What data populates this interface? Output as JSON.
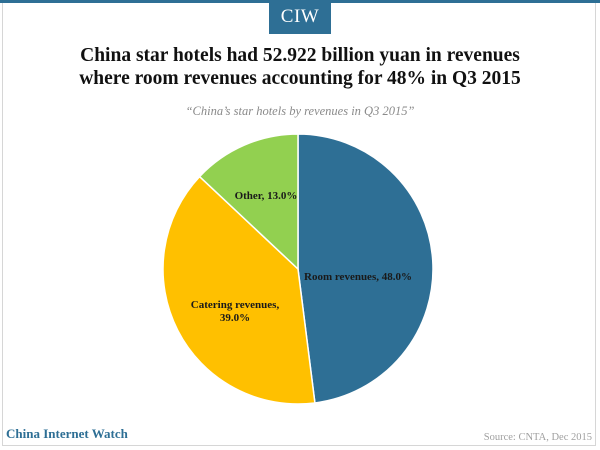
{
  "brand": {
    "logo_text": "CIW",
    "footer_text": "China Internet Watch",
    "color": "#2e6f95"
  },
  "title_lines": [
    "China star hotels had 52.922 billion yuan in revenues",
    "where room revenues accounting for 48% in Q3 2015"
  ],
  "subtitle": "“China’s star hotels by revenues in Q3 2015”",
  "source": "Source: CNTA, Dec 2015",
  "chart_data": {
    "type": "pie",
    "start_angle_deg": 0,
    "direction": "clockwise",
    "legend": "none",
    "slices": [
      {
        "label": "Room revenues",
        "value": 48.0,
        "display": "Room revenues, 48.0%",
        "color": "#2e6f95",
        "label_color": "#1a1a1a"
      },
      {
        "label": "Catering revenues",
        "value": 39.0,
        "display_lines": [
          "Catering revenues,",
          "39.0%"
        ],
        "color": "#ffc000",
        "label_color": "#1a1a1a"
      },
      {
        "label": "Other",
        "value": 13.0,
        "display": "Other, 13.0%",
        "color": "#92d050",
        "label_color": "#1a1a1a"
      }
    ]
  }
}
